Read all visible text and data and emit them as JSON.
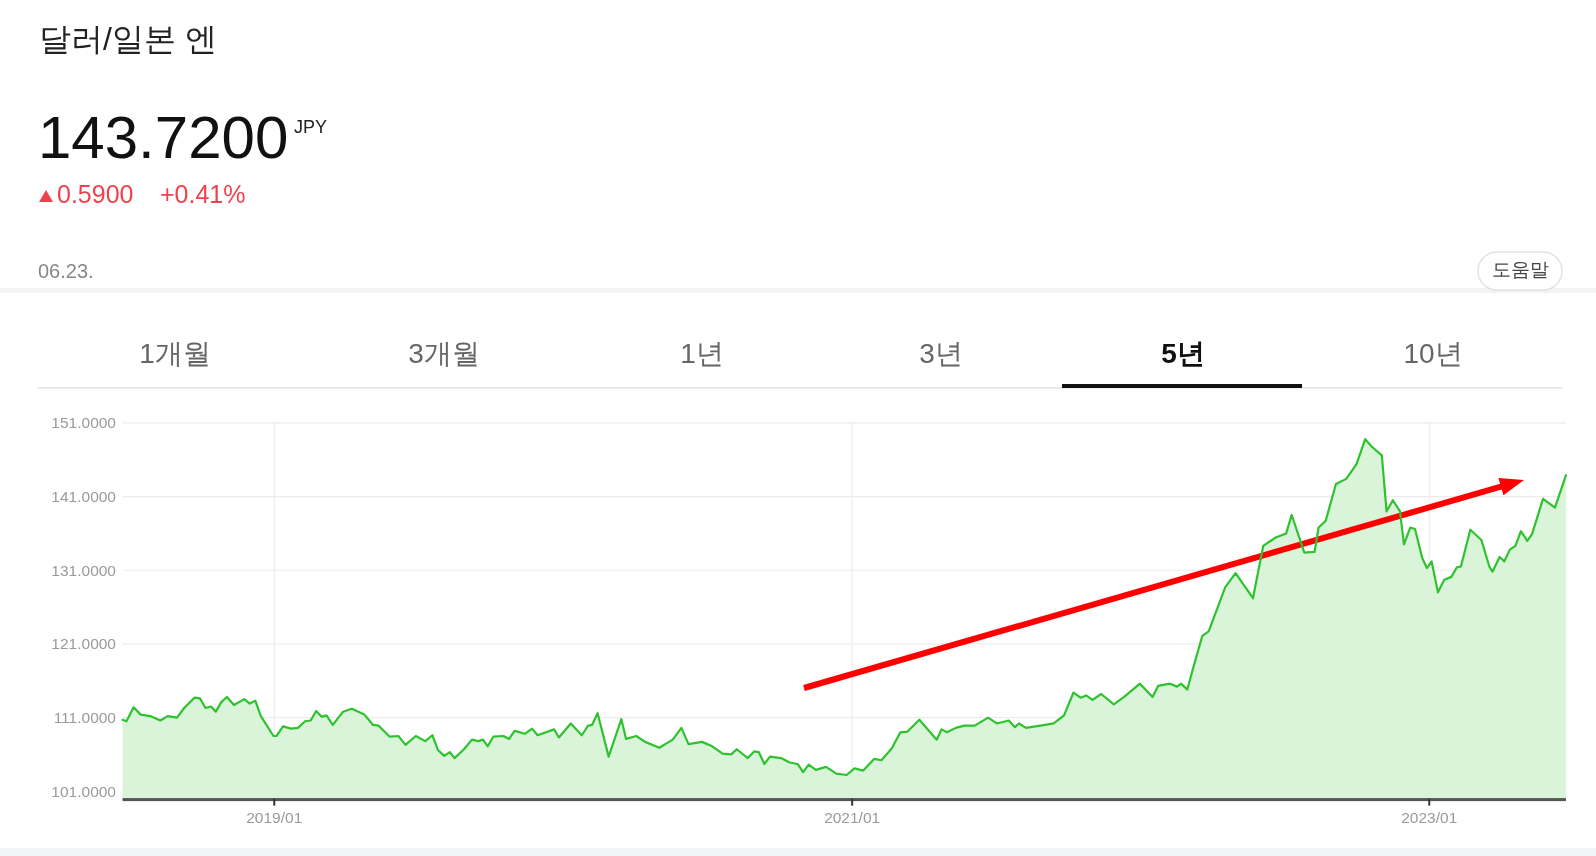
{
  "chart_data": {
    "type": "area",
    "title": "달러/일본 엔",
    "annotations": [
      "143.7200",
      "JPY",
      "0.5900",
      "+0.41%",
      "06.23.",
      "도움말",
      "1개월",
      "3개월",
      "1년",
      "3년",
      "5년",
      "10년"
    ],
    "color": "#2fc22f",
    "grid": true,
    "xlim": [
      "2018-06-23",
      "2023-06-23"
    ],
    "xticks": [
      {
        "value": "2019-01-01",
        "label": "2019/01"
      },
      {
        "value": "2021-01-01",
        "label": "2021/01"
      },
      {
        "value": "2023-01-01",
        "label": "2023/01"
      }
    ],
    "ylim": [
      100,
      151
    ],
    "yticks": [
      {
        "value": 101,
        "label": "101.0000"
      },
      {
        "value": 111,
        "label": "111.0000"
      },
      {
        "value": 121,
        "label": "121.0000"
      },
      {
        "value": 131,
        "label": "131.0000"
      },
      {
        "value": 141,
        "label": "141.0000"
      },
      {
        "value": 151,
        "label": "151.0000"
      }
    ],
    "x": [
      "2018-06-23",
      "2018-06-28",
      "2018-07-07",
      "2018-07-16",
      "2018-07-28",
      "2018-08-10",
      "2018-08-19",
      "2018-08-31",
      "2018-09-09",
      "2018-09-22",
      "2018-09-29",
      "2018-10-06",
      "2018-10-13",
      "2018-10-19",
      "2018-10-26",
      "2018-11-02",
      "2018-11-11",
      "2018-11-24",
      "2018-12-01",
      "2018-12-08",
      "2018-12-15",
      "2018-12-31",
      "2019-01-04",
      "2019-01-12",
      "2019-01-22",
      "2019-01-31",
      "2019-02-09",
      "2019-02-16",
      "2019-02-23",
      "2019-03-02",
      "2019-03-08",
      "2019-03-16",
      "2019-03-29",
      "2019-04-09",
      "2019-04-25",
      "2019-05-06",
      "2019-05-13",
      "2019-05-27",
      "2019-06-07",
      "2019-06-16",
      "2019-06-29",
      "2019-07-11",
      "2019-07-20",
      "2019-07-27",
      "2019-08-04",
      "2019-08-11",
      "2019-08-17",
      "2019-08-29",
      "2019-09-08",
      "2019-09-16",
      "2019-09-22",
      "2019-09-28",
      "2019-10-05",
      "2019-10-18",
      "2019-10-25",
      "2019-11-01",
      "2019-11-14",
      "2019-11-23",
      "2019-11-30",
      "2019-12-21",
      "2019-12-27",
      "2020-01-11",
      "2020-01-25",
      "2020-02-02",
      "2020-02-07",
      "2020-02-14",
      "2020-02-28",
      "2020-03-15",
      "2020-03-21",
      "2020-04-03",
      "2020-04-14",
      "2020-05-02",
      "2020-05-19",
      "2020-05-30",
      "2020-06-08",
      "2020-06-25",
      "2020-07-08",
      "2020-07-21",
      "2020-08-01",
      "2020-08-08",
      "2020-08-22",
      "2020-08-30",
      "2020-09-05",
      "2020-09-12",
      "2020-09-19",
      "2020-10-03",
      "2020-10-14",
      "2020-10-24",
      "2020-10-31",
      "2020-11-07",
      "2020-11-16",
      "2020-11-29",
      "2020-12-12",
      "2020-12-25",
      "2021-01-04",
      "2021-01-15",
      "2021-01-29",
      "2021-02-07",
      "2021-02-20",
      "2021-03-03",
      "2021-03-12",
      "2021-03-27",
      "2021-04-18",
      "2021-04-24",
      "2021-05-01",
      "2021-05-12",
      "2021-05-23",
      "2021-06-05",
      "2021-06-22",
      "2021-07-03",
      "2021-07-18",
      "2021-07-26",
      "2021-07-31",
      "2021-08-09",
      "2021-08-27",
      "2021-09-13",
      "2021-09-26",
      "2021-10-08",
      "2021-10-17",
      "2021-10-24",
      "2021-11-01",
      "2021-11-12",
      "2021-11-28",
      "2021-12-11",
      "2021-12-31",
      "2022-01-16",
      "2022-01-23",
      "2022-02-07",
      "2022-02-16",
      "2022-02-21",
      "2022-03-01",
      "2022-03-08",
      "2022-03-20",
      "2022-03-28",
      "2022-04-18",
      "2022-05-01",
      "2022-05-23",
      "2022-06-05",
      "2022-06-20",
      "2022-07-04",
      "2022-07-11",
      "2022-07-27",
      "2022-08-09",
      "2022-08-14",
      "2022-08-23",
      "2022-09-05",
      "2022-09-18",
      "2022-10-01",
      "2022-10-12",
      "2022-10-20",
      "2022-11-02",
      "2022-11-08",
      "2022-11-16",
      "2022-11-25",
      "2022-11-30",
      "2022-12-08",
      "2022-12-14",
      "2022-12-23",
      "2022-12-29",
      "2023-01-04",
      "2023-01-12",
      "2023-01-20",
      "2023-01-29",
      "2023-02-05",
      "2023-02-10",
      "2023-02-22",
      "2023-03-08",
      "2023-03-18",
      "2023-03-22",
      "2023-03-31",
      "2023-04-06",
      "2023-04-13",
      "2023-04-20",
      "2023-04-27",
      "2023-05-05",
      "2023-05-11",
      "2023-05-25",
      "2023-06-09",
      "2023-06-23"
    ],
    "values": [
      110.7,
      110.5,
      112.4,
      111.4,
      111.2,
      110.6,
      111.2,
      111.0,
      112.3,
      113.7,
      113.6,
      112.3,
      112.5,
      111.8,
      113.1,
      113.8,
      112.7,
      113.5,
      112.9,
      113.3,
      111.2,
      108.5,
      108.5,
      109.8,
      109.5,
      109.6,
      110.5,
      110.6,
      111.9,
      111.1,
      111.3,
      110.0,
      111.8,
      112.2,
      111.4,
      110.0,
      109.9,
      108.4,
      108.5,
      107.3,
      108.5,
      107.8,
      108.6,
      106.6,
      105.8,
      106.3,
      105.5,
      106.7,
      108.0,
      107.8,
      108.0,
      107.1,
      108.4,
      108.5,
      108.1,
      109.2,
      108.8,
      109.5,
      108.6,
      109.4,
      108.3,
      110.2,
      108.6,
      109.9,
      110.0,
      111.6,
      105.7,
      110.8,
      108.1,
      108.5,
      107.7,
      106.9,
      108.0,
      109.6,
      107.4,
      107.7,
      107.1,
      106.1,
      106.0,
      106.7,
      105.5,
      106.4,
      106.3,
      104.7,
      105.7,
      105.5,
      104.9,
      104.7,
      103.6,
      104.6,
      103.9,
      104.3,
      103.4,
      103.2,
      104.1,
      103.8,
      105.4,
      105.2,
      106.8,
      109.0,
      109.1,
      110.7,
      108.0,
      109.4,
      109.0,
      109.6,
      109.9,
      109.9,
      111.0,
      110.2,
      110.6,
      109.7,
      110.2,
      109.6,
      109.9,
      110.2,
      111.3,
      114.4,
      113.7,
      114.0,
      113.4,
      114.2,
      112.8,
      113.8,
      115.6,
      113.8,
      115.3,
      115.6,
      115.2,
      115.6,
      114.8,
      117.6,
      122.1,
      122.7,
      128.7,
      130.6,
      127.2,
      134.3,
      135.4,
      136.0,
      138.5,
      133.4,
      133.5,
      136.8,
      137.7,
      142.7,
      143.4,
      145.4,
      148.8,
      147.8,
      146.6,
      139.0,
      140.5,
      139.0,
      134.5,
      136.8,
      136.6,
      132.7,
      131.3,
      132.2,
      128.0,
      129.7,
      130.1,
      131.4,
      131.5,
      136.5,
      135.1,
      131.5,
      130.8,
      132.8,
      132.2,
      133.8,
      134.3,
      136.3,
      135.0,
      135.9,
      140.7,
      139.5,
      143.9
    ]
  }
}
